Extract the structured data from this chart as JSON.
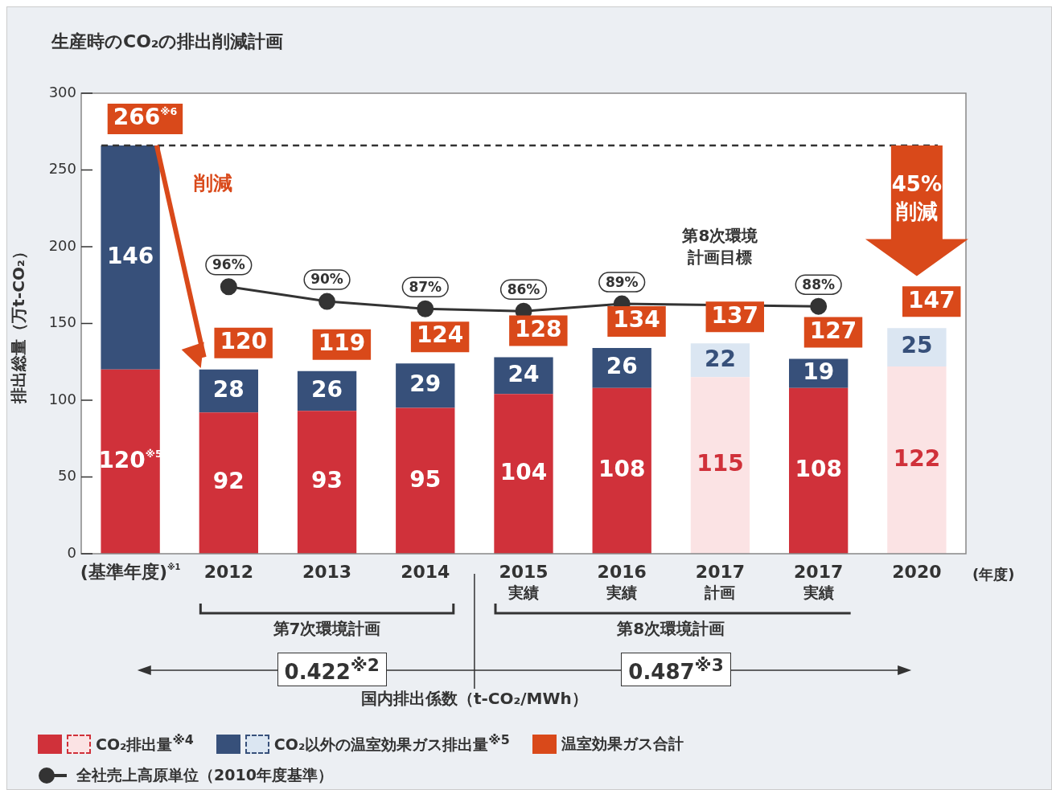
{
  "chart_data": {
    "type": "bar",
    "title": "生産時のCO₂の排出削減計画",
    "ylabel": "排出総量（万t-CO₂）",
    "categories": [
      "(基準年度)$^{※1}$",
      "2012",
      "2013",
      "2014",
      "2015\n実績",
      "2016\n実績",
      "2017\n計画",
      "2017\n実績",
      "2020"
    ],
    "stacked": true,
    "series": [
      {
        "name": "CO₂排出量$^{※4}$",
        "color": "#d0313a",
        "colors": [
          "#d0313a",
          "#d0313a",
          "#d0313a",
          "#d0313a",
          "#d0313a",
          "#d0313a",
          "#fbe3e4",
          "#d0313a",
          "#fbe3e4"
        ],
        "values": [
          120,
          92,
          93,
          95,
          104,
          108,
          115,
          108,
          122
        ],
        "value_labels": [
          "120$^{※5}$",
          "92",
          "93",
          "95",
          "104",
          "108",
          "115",
          "108",
          "122"
        ]
      },
      {
        "name": "CO₂以外の温室効果ガス排出量$^{※5}$",
        "color": "#37507a",
        "colors": [
          "#37507a",
          "#37507a",
          "#37507a",
          "#37507a",
          "#37507a",
          "#37507a",
          "#dbe6f2",
          "#37507a",
          "#dbe6f2"
        ],
        "values": [
          146,
          28,
          26,
          29,
          24,
          26,
          22,
          19,
          25
        ],
        "value_labels": [
          "146",
          "28",
          "26",
          "29",
          "24",
          "26",
          "22",
          "19",
          "25"
        ]
      },
      {
        "name": "全社売上高原単位（2010年度基準）",
        "type": "line",
        "axis": "y2",
        "color": "#333333",
        "values": [
          null,
          96,
          90,
          87,
          86,
          89,
          null,
          88,
          null
        ],
        "value_labels": [
          null,
          "96%",
          "90%",
          "87%",
          "86%",
          "89%",
          null,
          "88%",
          null
        ]
      }
    ],
    "totals": [
      "266$^{※6}$",
      "120",
      "119",
      "124",
      "128",
      "134",
      "137",
      "127",
      "147"
    ],
    "ylim": [
      0,
      300
    ],
    "yticks": [
      0,
      50,
      100,
      150,
      200,
      250,
      300
    ],
    "y2lim": [
      -13,
      175
    ],
    "ref_lines": [
      {
        "axis": "y",
        "value": 266,
        "color": "#333333",
        "line_style": "dashed"
      }
    ],
    "marker": "circle",
    "grid": false,
    "legend": "bottom",
    "annotations": [
      "削減",
      "第8次環境計画目標",
      "45%\n削減",
      "(年度)",
      "第7次環境計画",
      "第8次環境計画",
      "0.422$^{※2}$",
      "0.487$^{※3}$",
      "国内排出係数（t-CO₂/MWh）",
      "温室効果ガス合計"
    ]
  }
}
